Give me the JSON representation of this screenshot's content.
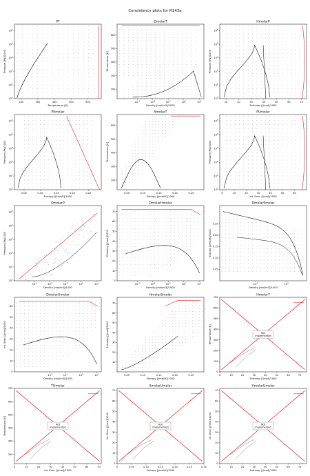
{
  "title": "Consistency plots for R143a",
  "colors": {
    "curve": "#000000",
    "highlight": "#e8201e",
    "box_border": "#999999"
  },
  "chart_data": [
    {
      "type": "scatter",
      "title": "PT",
      "xlabel": "Temperature [K]",
      "ylabel": "Pressure [Pa]/1000",
      "xlim": [
        160,
        680
      ],
      "ylim": [
        1,
        300000
      ],
      "yscale": "log",
      "xticks": [
        200,
        300,
        400,
        500,
        600
      ],
      "yticks": [
        1,
        10,
        100,
        1000,
        10000,
        100000
      ]
    },
    {
      "type": "scatter",
      "title": "DmolarT",
      "xlabel": "Density [mol/m3]/1000",
      "ylabel": "Temperature [K]",
      "xlim": [
        5e-05,
        20
      ],
      "ylim": [
        130,
        680
      ],
      "xscale": "log",
      "xticks": [
        0.001,
        0.01,
        0.1,
        1,
        10
      ],
      "yticks": [
        200,
        300,
        400,
        500,
        600
      ]
    },
    {
      "type": "scatter",
      "title": "HmolarP",
      "xlabel": "Enthalpy [J/mol]/1000",
      "ylabel": "Pressure [Pa]/1000",
      "xlim": [
        5,
        74
      ],
      "ylim": [
        1,
        300000
      ],
      "yscale": "log",
      "xticks": [
        10,
        20,
        30,
        40,
        50,
        60,
        70
      ],
      "yticks": [
        1,
        10,
        100,
        1000,
        10000,
        100000
      ]
    },
    {
      "type": "scatter",
      "title": "PSmolar",
      "xlabel": "Entropy [J/mol/K]/1000",
      "ylabel": "Pressure [Pa]/1000",
      "xlim": [
        0.02,
        0.29
      ],
      "ylim": [
        1,
        300000
      ],
      "yscale": "log",
      "xticks": [
        0.05,
        0.1,
        0.15,
        0.2,
        0.25
      ],
      "yticks": [
        1,
        10,
        100,
        1000,
        10000,
        100000
      ]
    },
    {
      "type": "scatter",
      "title": "SmolarT",
      "xlabel": "Entropy [J/mol/K]/1000",
      "ylabel": "Temperature [K]",
      "xlim": [
        0.02,
        0.29
      ],
      "ylim": [
        130,
        680
      ],
      "xticks": [
        0.05,
        0.1,
        0.15,
        0.2,
        0.25
      ],
      "yticks": [
        200,
        300,
        400,
        500,
        600
      ]
    },
    {
      "type": "scatter",
      "title": "PUmolar",
      "xlabel": "Int. Ener. [J/mol]/1000",
      "ylabel": "Pressure [Pa]/1000",
      "xlim": [
        -2,
        70
      ],
      "ylim": [
        1,
        300000
      ],
      "yscale": "log",
      "xticks": [
        0,
        10,
        20,
        30,
        40,
        50,
        60
      ],
      "yticks": [
        1,
        10,
        100,
        1000,
        10000,
        100000
      ]
    },
    {
      "type": "scatter",
      "title": "DmolarP",
      "xlabel": "Density [mol/m3]/1000",
      "ylabel": "Pressure [Pa]/1000",
      "xlim": [
        5e-05,
        20
      ],
      "ylim": [
        1,
        300000
      ],
      "xscale": "log",
      "yscale": "log",
      "xticks": [
        0.001,
        0.01,
        0.1,
        1,
        10
      ],
      "yticks": [
        1,
        10,
        100,
        1000,
        10000,
        100000
      ]
    },
    {
      "type": "scatter",
      "title": "DmolarHmolar",
      "xlabel": "Density [mol/m3]/1000",
      "ylabel": "Enthalpy [J/mol]/1000",
      "xlim": [
        5e-05,
        20
      ],
      "ylim": [
        0,
        76
      ],
      "xscale": "log",
      "xticks": [
        0.001,
        0.01,
        0.1,
        1,
        10
      ],
      "yticks": [
        0,
        10,
        20,
        30,
        40,
        50,
        60,
        70
      ]
    },
    {
      "type": "scatter",
      "title": "DmolarSmolar",
      "xlabel": "Density [mol/m3]/1000",
      "ylabel": "Entropy [J/mol/K]/1000",
      "xlim": [
        5e-05,
        20
      ],
      "ylim": [
        0.0,
        0.33
      ],
      "xscale": "log",
      "xticks": [
        0.01,
        1,
        100
      ],
      "yticks": [
        0.05,
        0.1,
        0.15,
        0.2,
        0.25
      ]
    },
    {
      "type": "scatter",
      "title": "DmolarUmolar",
      "xlabel": "Density [mol/m3]/1000",
      "ylabel": "Int. Ener. [J/mol]/1000",
      "xlim": [
        5e-05,
        20
      ],
      "ylim": [
        0,
        68
      ],
      "xscale": "log",
      "xticks": [
        0.01,
        0.1,
        1,
        10,
        100
      ],
      "yticks": [
        0,
        10,
        20,
        30,
        40,
        50,
        60
      ]
    },
    {
      "type": "scatter",
      "title": "HmolarSmolar",
      "xlabel": "Entropy [J/mol/K]/1000",
      "ylabel": "Enthalpy [J/mol]/1000",
      "xlim": [
        0.02,
        0.29
      ],
      "ylim": [
        0,
        76
      ],
      "xticks": [
        0.05,
        0.1,
        0.15,
        0.2,
        0.25
      ],
      "yticks": [
        10,
        20,
        30,
        40,
        50,
        60,
        70
      ]
    },
    {
      "type": "line",
      "title": "HmolarT",
      "xlabel": "Enthalpy [J/mol]/1000",
      "ylabel": "Temperature [K]",
      "xlim": [
        0,
        76
      ],
      "ylim": [
        0,
        700
      ],
      "xticks": [
        0,
        10,
        20,
        30,
        40,
        50,
        60,
        70
      ],
      "yticks": [
        0,
        100,
        200,
        300,
        400,
        500,
        600,
        700
      ],
      "annotation": "Not\nImplemented"
    },
    {
      "type": "line",
      "title": "TUmolar",
      "xlabel": "Int. Ener. [J/mol]/1000",
      "ylabel": "Temperature [K]",
      "xlim": [
        0,
        72
      ],
      "ylim": [
        130,
        700
      ],
      "xticks": [
        0,
        10,
        20,
        30,
        40,
        50,
        60,
        70
      ],
      "yticks": [
        200,
        300,
        400,
        500,
        600,
        700
      ],
      "annotation": "Not\nImplemented"
    },
    {
      "type": "line",
      "title": "SmolarUmolar",
      "xlabel": "Entropy [J/mol/K]/1000",
      "ylabel": "Int. Ener. [J/mol]/1000",
      "xlim": [
        0,
        0.3
      ],
      "ylim": [
        0,
        72
      ],
      "xticks": [
        0.0,
        0.05,
        0.1,
        0.15,
        0.2,
        0.25,
        0.3
      ],
      "yticks": [
        0,
        10,
        20,
        30,
        40,
        50,
        60,
        70
      ],
      "annotation": "Not\nImplemented"
    },
    {
      "type": "line",
      "title": "HmolarUmolar",
      "xlabel": "Enthalpy [J/mol]/1000",
      "ylabel": "Int. Ener. [J/mol]/1000",
      "xlim": [
        0,
        76
      ],
      "ylim": [
        0,
        72
      ],
      "xticks": [
        0,
        10,
        20,
        30,
        40,
        50,
        60,
        70
      ],
      "yticks": [
        0,
        10,
        20,
        30,
        40,
        50,
        60,
        70
      ],
      "annotation": "Not\nImplemented"
    }
  ]
}
